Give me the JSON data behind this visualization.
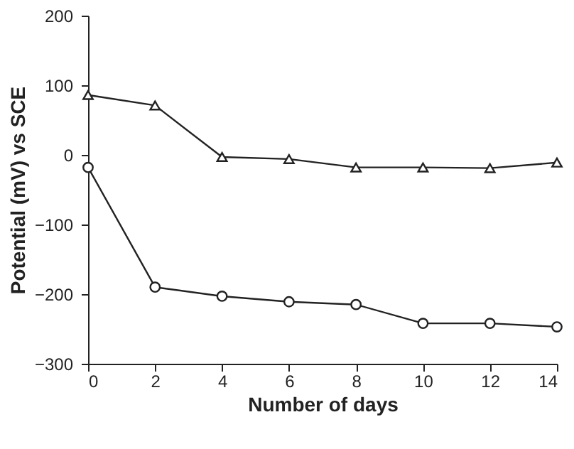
{
  "chart_data": {
    "type": "line",
    "xlabel": "Number of days",
    "ylabel": "Potential (mV) vs SCE",
    "x": [
      0,
      2,
      4,
      6,
      8,
      10,
      12,
      14
    ],
    "series": [
      {
        "color": "#222222",
        "marker": "triangle",
        "values": [
          86,
          71,
          -3,
          -6,
          -18,
          -18,
          -19,
          -11
        ]
      },
      {
        "color": "#222222",
        "marker": "circle",
        "values": [
          -18,
          -190,
          -203,
          -211,
          -215,
          -242,
          -242,
          -247
        ]
      }
    ],
    "xlim": [
      0,
      14
    ],
    "xticks": [
      0,
      2,
      4,
      6,
      8,
      10,
      12,
      14
    ],
    "ylim": [
      -300,
      200
    ],
    "yticks": [
      -300,
      -200,
      -100,
      0,
      100,
      200
    ],
    "grid": false
  }
}
